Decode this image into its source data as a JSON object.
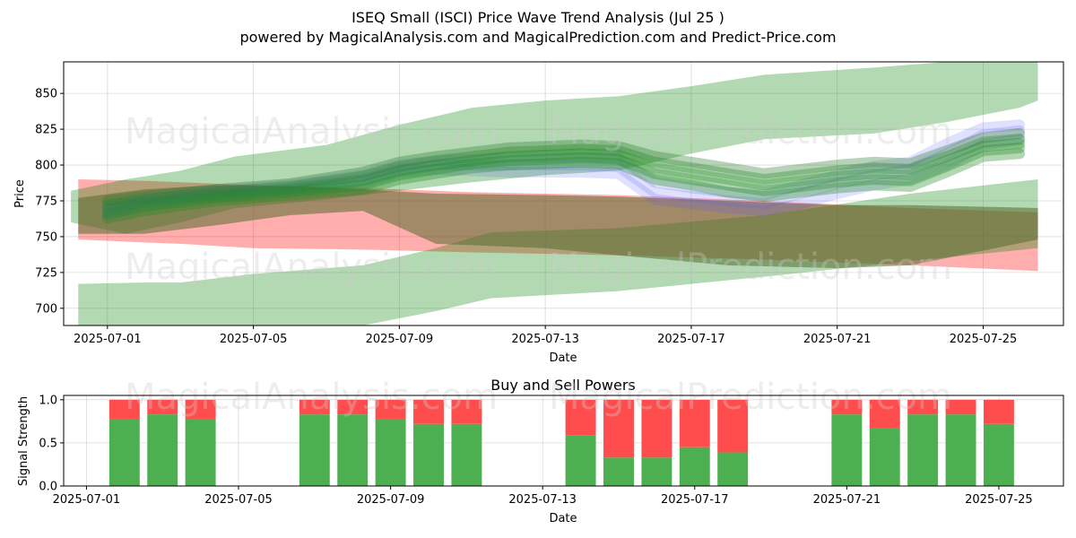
{
  "chart_data": [
    {
      "type": "area",
      "title": "ISEQ Small (ISCI) Price Wave Trend Analysis (Jul 25 )",
      "subtitle": "powered by MagicalAnalysis.com and MagicalPrediction.com and Predict-Price.com",
      "xlabel": "Date",
      "ylabel": "Price",
      "xlim": [
        "2025-06-29.8",
        "2025-07-26.2"
      ],
      "ylim": [
        688,
        872
      ],
      "x_ticks": [
        "2025-07-01",
        "2025-07-05",
        "2025-07-09",
        "2025-07-13",
        "2025-07-17",
        "2025-07-21",
        "2025-07-25"
      ],
      "y_ticks": [
        700,
        725,
        750,
        775,
        800,
        825,
        850
      ],
      "grid": true,
      "watermarks": [
        "MagicalAnalysis.com",
        "MagicalPrediction.com",
        "MagicalAnalysis.com",
        "MagicalPrediction.com"
      ],
      "bands": [
        {
          "name": "red band",
          "color": "#ff0000",
          "opacity": 0.32,
          "x": [
            -0.8,
            1,
            2,
            4,
            7,
            10,
            14,
            18,
            22,
            25.5
          ],
          "upper": [
            790,
            789,
            788,
            786,
            784,
            781,
            779,
            775,
            770,
            767
          ],
          "lower": [
            748,
            746,
            745,
            742,
            741,
            739,
            737,
            734,
            730,
            726
          ]
        },
        {
          "name": "upper green band",
          "color": "#008000",
          "opacity": 0.3,
          "x": [
            -1,
            0.5,
            2,
            3.5,
            6,
            8,
            10,
            12,
            14,
            16,
            18,
            21,
            23,
            25,
            25.5
          ],
          "upper": [
            782,
            790,
            796,
            806,
            814,
            828,
            840,
            845,
            848,
            855,
            863,
            868,
            872,
            872,
            872
          ],
          "lower": [
            760,
            752,
            760,
            770,
            776,
            782,
            788,
            793,
            796,
            808,
            818,
            822,
            830,
            840,
            845
          ]
        },
        {
          "name": "lower green band",
          "color": "#008000",
          "opacity": 0.3,
          "x": [
            -0.8,
            1,
            2,
            4,
            7,
            9,
            10.5,
            14,
            18,
            22,
            25.5
          ],
          "upper": [
            717,
            718,
            718,
            724,
            730,
            742,
            753,
            756,
            765,
            780,
            790
          ],
          "lower": [
            688,
            688,
            688,
            688,
            688,
            698,
            707,
            712,
            722,
            733,
            742
          ]
        },
        {
          "name": "brown band",
          "color": "#556b2f",
          "opacity": 0.55,
          "x": [
            -0.8,
            1,
            3,
            5,
            7,
            9,
            12,
            14,
            17,
            20,
            22,
            25.5
          ],
          "upper": [
            777,
            783,
            786,
            785,
            783,
            780,
            779,
            778,
            775,
            772,
            772,
            770
          ],
          "lower": [
            752,
            752,
            758,
            765,
            768,
            745,
            742,
            737,
            730,
            728,
            730,
            748
          ]
        }
      ],
      "wave_lines": {
        "x": [
          0,
          1,
          3,
          5,
          7,
          8,
          9,
          10,
          11,
          12,
          13,
          14,
          15,
          16,
          17,
          18,
          19,
          20,
          21,
          22,
          23,
          24,
          25
        ],
        "series": [
          {
            "name": "blue wave 1",
            "color": "#5555ff",
            "values": [
              765,
              772,
              778,
              782,
              787,
              795,
              797,
              796,
              795,
              795,
              795,
              794,
              776,
              773,
              770,
              768,
              773,
              780,
              786,
              790,
              800,
              814,
              818
            ]
          },
          {
            "name": "blue wave 2",
            "color": "#5555ff",
            "values": [
              768,
              774,
              780,
              784,
              790,
              797,
              800,
              800,
              800,
              800,
              800,
              799,
              781,
              778,
              775,
              773,
              780,
              787,
              793,
              797,
              808,
              821,
              824
            ]
          },
          {
            "name": "blue wave 3",
            "color": "#5555ff",
            "values": [
              771,
              776,
              782,
              786,
              793,
              800,
              803,
              804,
              805,
              805,
              806,
              805,
              788,
              784,
              781,
              779,
              786,
              793,
              799,
              802,
              815,
              826,
              828
            ]
          },
          {
            "name": "green wave 1",
            "color": "#228b22",
            "values": [
              763,
              768,
              775,
              779,
              783,
              790,
              794,
              798,
              800,
              801,
              802,
              801,
              790,
              786,
              781,
              778,
              781,
              784,
              786,
              785,
              795,
              806,
              808
            ]
          },
          {
            "name": "green wave 2",
            "color": "#228b22",
            "values": [
              766,
              771,
              777,
              781,
              786,
              793,
              797,
              801,
              803,
              804,
              805,
              804,
              794,
              790,
              786,
              782,
              785,
              788,
              790,
              789,
              799,
              810,
              812
            ]
          },
          {
            "name": "green wave 3",
            "color": "#228b22",
            "values": [
              769,
              774,
              779,
              783,
              789,
              796,
              800,
              803,
              806,
              807,
              808,
              807,
              798,
              794,
              790,
              786,
              789,
              792,
              794,
              793,
              803,
              813,
              815
            ]
          },
          {
            "name": "green wave 4",
            "color": "#228b22",
            "values": [
              772,
              776,
              781,
              785,
              792,
              799,
              803,
              806,
              809,
              810,
              811,
              810,
              802,
              798,
              794,
              790,
              793,
              796,
              798,
              797,
              806,
              816,
              818
            ]
          },
          {
            "name": "green wave 5",
            "color": "#2e7d32",
            "values": [
              775,
              778,
              783,
              787,
              795,
              802,
              806,
              809,
              812,
              813,
              814,
              813,
              806,
              802,
              798,
              794,
              797,
              800,
              802,
              801,
              810,
              819,
              822
            ]
          }
        ]
      }
    },
    {
      "type": "bar",
      "title": "Buy and Sell Powers",
      "xlabel": "Date",
      "ylabel": "Signal Strength",
      "ylim": [
        0,
        1.05
      ],
      "y_ticks": [
        0.0,
        0.5,
        1.0
      ],
      "y_tick_labels": [
        "0.0",
        "0.5",
        "1.0"
      ],
      "x_ticks": [
        "2025-07-01",
        "2025-07-05",
        "2025-07-09",
        "2025-07-13",
        "2025-07-17",
        "2025-07-21",
        "2025-07-25"
      ],
      "xlim_days": [
        -0.6,
        25.7
      ],
      "days": [
        1,
        2,
        3,
        6,
        7,
        8,
        9,
        10,
        13,
        14,
        15,
        16,
        17,
        20,
        21,
        22,
        23,
        24
      ],
      "buy": [
        0.78,
        0.83,
        0.78,
        0.83,
        0.83,
        0.78,
        0.72,
        0.72,
        0.59,
        0.33,
        0.33,
        0.45,
        0.39,
        0.83,
        0.67,
        0.83,
        0.83,
        0.72
      ],
      "sell": [
        0.22,
        0.17,
        0.22,
        0.17,
        0.17,
        0.22,
        0.28,
        0.28,
        0.41,
        0.67,
        0.67,
        0.55,
        0.61,
        0.17,
        0.33,
        0.17,
        0.17,
        0.28
      ],
      "buy_color": "#4caf50",
      "sell_color": "#ff4d4d",
      "watermarks": [
        "MagicalAnalysis.com",
        "MagicalPrediction.com"
      ]
    }
  ]
}
